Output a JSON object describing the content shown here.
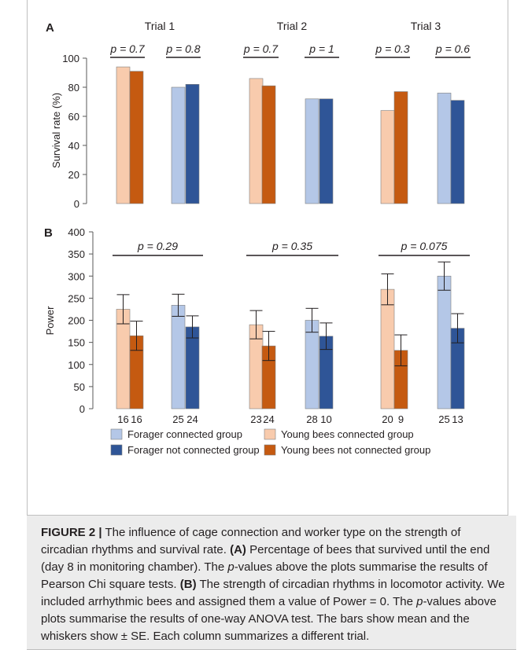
{
  "panel_a": {
    "label": "A",
    "ylabel": "Survival rate (%)",
    "trials": [
      "Trial 1",
      "Trial 2",
      "Trial 3"
    ],
    "p_values": [
      "p = 0.7",
      "p = 0.8",
      "p = 0.7",
      "p = 1",
      "p = 0.3",
      "p = 0.6"
    ]
  },
  "panel_b": {
    "label": "B",
    "ylabel": "Power",
    "p_values": [
      "p = 0.29",
      "p = 0.35",
      "p = 0.075"
    ],
    "sample_sizes": [
      "16",
      "16",
      "25",
      "24",
      "23",
      "24",
      "28",
      "10",
      "20",
      "9",
      "25",
      "13"
    ]
  },
  "legend": [
    {
      "label": "Forager connected group",
      "color": "#b4c7e7"
    },
    {
      "label": "Young bees connected group",
      "color": "#f8cbad"
    },
    {
      "label": "Forager not connected group",
      "color": "#2f5597"
    },
    {
      "label": "Young bees not connected group",
      "color": "#c55a11"
    }
  ],
  "caption": {
    "figure_label": "FIGURE 2 |",
    "text_1": " The influence of cage connection and worker type on the strength of circadian rhythms and survival rate. ",
    "a_label": "(A)",
    "text_2": " Percentage of bees that survived until the end (day 8 in monitoring chamber). The ",
    "p_1": "p",
    "text_3": "-values above the plots summarise the results of Pearson Chi square tests. ",
    "b_label": "(B)",
    "text_4": " The strength of circadian rhythms in locomotor activity. We included arrhythmic bees and assigned them a value of Power = 0. The ",
    "p_2": "p",
    "text_5": "-values above plots summarise the results of one-way ANOVA test. The bars show mean and the whiskers show ± SE. Each column summarizes a different trial."
  },
  "chart_data": [
    {
      "type": "bar",
      "title": "",
      "ylabel": "Survival rate (%)",
      "ylim": [
        0,
        100
      ],
      "yticks": [
        0,
        20,
        40,
        60,
        80,
        100
      ],
      "categories": [
        "Trial 1",
        "Trial 2",
        "Trial 3"
      ],
      "series": [
        {
          "name": "Young bees connected group",
          "color": "#f8cbad",
          "values": [
            94,
            86,
            64
          ]
        },
        {
          "name": "Young bees not connected group",
          "color": "#c55a11",
          "values": [
            91,
            81,
            77
          ]
        },
        {
          "name": "Forager connected group",
          "color": "#b4c7e7",
          "values": [
            80,
            72,
            76
          ]
        },
        {
          "name": "Forager not connected group",
          "color": "#2f5597",
          "values": [
            82,
            72,
            71
          ]
        }
      ],
      "p_values": [
        "p = 0.7",
        "p = 0.8",
        "p = 0.7",
        "p = 1",
        "p = 0.3",
        "p = 0.6"
      ]
    },
    {
      "type": "bar",
      "title": "",
      "ylabel": "Power",
      "ylim": [
        0,
        400
      ],
      "yticks": [
        0,
        50,
        100,
        150,
        200,
        250,
        300,
        350,
        400
      ],
      "categories": [
        "Trial 1",
        "Trial 2",
        "Trial 3"
      ],
      "series": [
        {
          "name": "Young bees connected group",
          "color": "#f8cbad",
          "values": [
            225,
            190,
            270
          ],
          "se": [
            33,
            32,
            35
          ],
          "n": [
            16,
            23,
            20
          ]
        },
        {
          "name": "Young bees not connected group",
          "color": "#c55a11",
          "values": [
            165,
            142,
            132
          ],
          "se": [
            33,
            33,
            35
          ],
          "n": [
            16,
            24,
            9
          ]
        },
        {
          "name": "Forager connected group",
          "color": "#b4c7e7",
          "values": [
            234,
            200,
            300
          ],
          "se": [
            25,
            27,
            32
          ],
          "n": [
            25,
            28,
            25
          ]
        },
        {
          "name": "Forager not connected group",
          "color": "#2f5597",
          "values": [
            185,
            164,
            182
          ],
          "se": [
            25,
            30,
            33
          ],
          "n": [
            24,
            10,
            13
          ]
        }
      ],
      "p_values": [
        "p = 0.29",
        "p = 0.35",
        "p = 0.075"
      ]
    }
  ]
}
